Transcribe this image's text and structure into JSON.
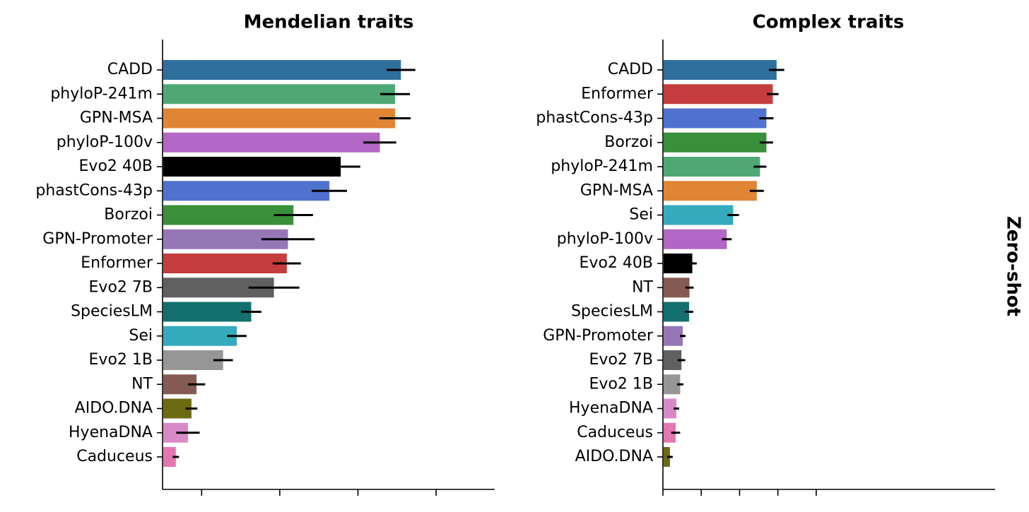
{
  "row_label": "Zero-shot",
  "chart_data": [
    {
      "type": "bar",
      "orientation": "horizontal",
      "title": "Mendelian traits",
      "xlabel": "",
      "ylabel": "",
      "xlim": [
        0,
        0.85
      ],
      "x_tick_values": [
        0.1,
        0.3,
        0.5,
        0.7
      ],
      "x_tick_labels_visible": false,
      "grid": false,
      "bars": [
        {
          "label": "CADD",
          "value": 0.61,
          "error": 0.037,
          "color": "#2f6f9e"
        },
        {
          "label": "phyloP-241m",
          "value": 0.595,
          "error": 0.038,
          "color": "#4fa874"
        },
        {
          "label": "GPN-MSA",
          "value": 0.595,
          "error": 0.04,
          "color": "#e08533"
        },
        {
          "label": "phyloP-100v",
          "value": 0.556,
          "error": 0.042,
          "color": "#b266c5"
        },
        {
          "label": "Evo2 40B",
          "value": 0.456,
          "error": 0.05,
          "color": "#000000"
        },
        {
          "label": "phastCons-43p",
          "value": 0.427,
          "error": 0.045,
          "color": "#4f72cf"
        },
        {
          "label": "Borzoi",
          "value": 0.335,
          "error": 0.05,
          "color": "#3a8f3a"
        },
        {
          "label": "GPN-Promoter",
          "value": 0.321,
          "error": 0.068,
          "color": "#9577b8"
        },
        {
          "label": "Enformer",
          "value": 0.318,
          "error": 0.036,
          "color": "#c53d3d"
        },
        {
          "label": "Evo2 7B",
          "value": 0.285,
          "error": 0.065,
          "color": "#606060"
        },
        {
          "label": "SpeciesLM",
          "value": 0.227,
          "error": 0.026,
          "color": "#13706e"
        },
        {
          "label": "Sei",
          "value": 0.19,
          "error": 0.025,
          "color": "#35aabd"
        },
        {
          "label": "Evo2 1B",
          "value": 0.155,
          "error": 0.025,
          "color": "#969696"
        },
        {
          "label": "NT",
          "value": 0.087,
          "error": 0.022,
          "color": "#855a52"
        },
        {
          "label": "AIDO.DNA",
          "value": 0.074,
          "error": 0.015,
          "color": "#6c6b12"
        },
        {
          "label": "HyenaDNA",
          "value": 0.065,
          "error": 0.03,
          "color": "#d88ac6"
        },
        {
          "label": "Caduceus",
          "value": 0.034,
          "error": 0.008,
          "color": "#e476b0"
        }
      ]
    },
    {
      "type": "bar",
      "orientation": "horizontal",
      "title": "Complex traits",
      "xlabel": "",
      "ylabel": "",
      "xlim": [
        0,
        0.26
      ],
      "x_tick_values": [
        0.0,
        0.03,
        0.06,
        0.09,
        0.12
      ],
      "x_tick_labels_visible": false,
      "grid": false,
      "bars": [
        {
          "label": "CADD",
          "value": 0.089,
          "error": 0.006,
          "color": "#2f6f9e"
        },
        {
          "label": "Enformer",
          "value": 0.086,
          "error": 0.0045,
          "color": "#c53d3d"
        },
        {
          "label": "phastCons-43p",
          "value": 0.081,
          "error": 0.0055,
          "color": "#4f72cf"
        },
        {
          "label": "Borzoi",
          "value": 0.081,
          "error": 0.0052,
          "color": "#3a8f3a"
        },
        {
          "label": "phyloP-241m",
          "value": 0.076,
          "error": 0.005,
          "color": "#4fa874"
        },
        {
          "label": "GPN-MSA",
          "value": 0.0735,
          "error": 0.0055,
          "color": "#e08533"
        },
        {
          "label": "Sei",
          "value": 0.055,
          "error": 0.0045,
          "color": "#35aabd"
        },
        {
          "label": "phyloP-100v",
          "value": 0.05,
          "error": 0.0038,
          "color": "#b266c5"
        },
        {
          "label": "Evo2 40B",
          "value": 0.023,
          "error": 0.0035,
          "color": "#000000"
        },
        {
          "label": "NT",
          "value": 0.0208,
          "error": 0.0032,
          "color": "#855a52"
        },
        {
          "label": "SpeciesLM",
          "value": 0.0205,
          "error": 0.0032,
          "color": "#13706e"
        },
        {
          "label": "GPN-Promoter",
          "value": 0.0155,
          "error": 0.0022,
          "color": "#9577b8"
        },
        {
          "label": "Evo2 7B",
          "value": 0.0145,
          "error": 0.003,
          "color": "#606060"
        },
        {
          "label": "Evo2 1B",
          "value": 0.0135,
          "error": 0.0025,
          "color": "#969696"
        },
        {
          "label": "HyenaDNA",
          "value": 0.0105,
          "error": 0.0022,
          "color": "#d88ac6"
        },
        {
          "label": "Caduceus",
          "value": 0.01,
          "error": 0.0035,
          "color": "#e476b0"
        },
        {
          "label": "AIDO.DNA",
          "value": 0.0055,
          "error": 0.0022,
          "color": "#6c6b12"
        }
      ]
    }
  ]
}
